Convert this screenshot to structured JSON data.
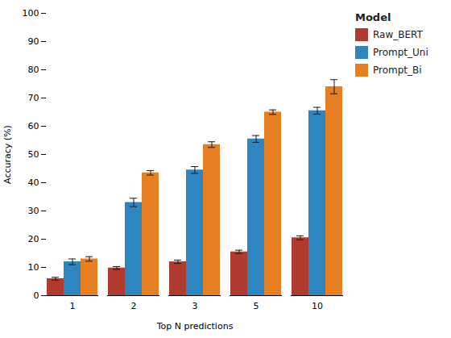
{
  "chart_data": {
    "type": "bar",
    "xlabel": "Top N predictions",
    "ylabel": "Accuracy (%)",
    "legend_title": "Model",
    "categories": [
      1,
      2,
      3,
      5,
      10
    ],
    "series": [
      {
        "name": "Raw_BERT",
        "color": "#b03a2e",
        "values": [
          6.0,
          9.8,
          12.0,
          15.5,
          20.5
        ],
        "errors": [
          0.5,
          0.5,
          0.6,
          0.6,
          0.7
        ]
      },
      {
        "name": "Prompt_Uni",
        "color": "#2e86c1",
        "values": [
          12.0,
          33.0,
          44.5,
          55.5,
          65.5
        ],
        "errors": [
          1.0,
          1.5,
          1.2,
          1.2,
          1.2
        ]
      },
      {
        "name": "Prompt_Bi",
        "color": "#e67e22",
        "values": [
          13.0,
          43.5,
          53.5,
          65.0,
          74.0
        ],
        "errors": [
          0.8,
          0.8,
          1.0,
          0.8,
          2.5
        ]
      }
    ],
    "ylim": [
      0,
      100
    ],
    "yticks": [
      0,
      10,
      20,
      30,
      40,
      50,
      60,
      70,
      80,
      90,
      100
    ],
    "grid": false,
    "legend": "right"
  }
}
